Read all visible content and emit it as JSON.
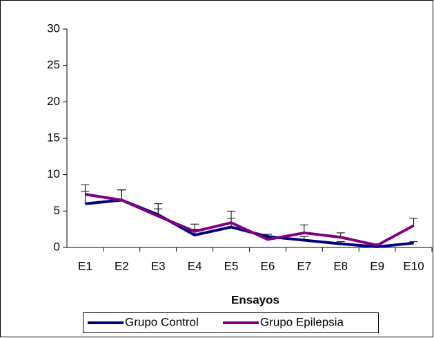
{
  "chart_data": {
    "type": "line",
    "x_label": "Ensayos",
    "categories": [
      "E1",
      "E2",
      "E3",
      "E4",
      "E5",
      "E6",
      "E7",
      "E8",
      "E9",
      "E10"
    ],
    "series": [
      {
        "name": "Grupo Control",
        "color": "#000080",
        "values": [
          6.0,
          6.5,
          4.5,
          1.7,
          2.8,
          1.5,
          1.0,
          0.5,
          0.1,
          0.6
        ],
        "errors": [
          1.7,
          1.4,
          0.8,
          0.8,
          1.2,
          0.3,
          0.5,
          0.3,
          0.2,
          0.2
        ]
      },
      {
        "name": "Grupo Epilepsia",
        "color": "#800080",
        "values": [
          7.3,
          6.5,
          4.3,
          2.2,
          3.4,
          1.1,
          2.0,
          1.4,
          0.3,
          3.0
        ],
        "errors": [
          1.3,
          1.4,
          1.7,
          1.0,
          1.6,
          0.7,
          1.1,
          0.6,
          0.2,
          1.0
        ]
      }
    ],
    "ylim": [
      0,
      30
    ],
    "yticks": [
      0,
      5,
      10,
      15,
      20,
      25,
      30
    ],
    "legend": "bottom"
  }
}
